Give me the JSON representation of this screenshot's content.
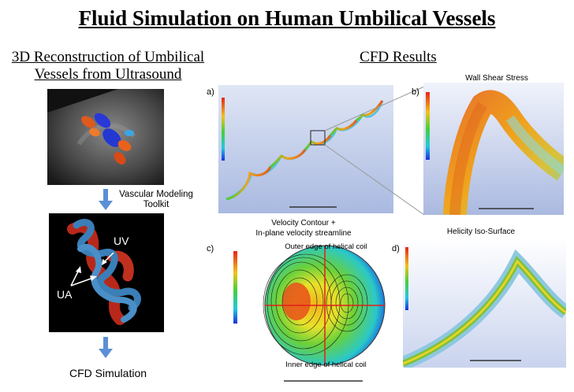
{
  "title": "Fluid Simulation on Human Umbilical Vessels",
  "left": {
    "heading_line1": "3D Reconstruction of Umbilical",
    "heading_line2": "Vessels from Ultrasound",
    "step1_line1": "Vascular Modeling",
    "step1_line2": "Toolkit",
    "label_uv": "UV",
    "label_ua": "UA",
    "step2": "CFD Simulation"
  },
  "right": {
    "heading": "CFD Results",
    "panel_a": "a)",
    "panel_b": "b)",
    "panel_c": "c)",
    "panel_d": "d)",
    "b_title": "Wall Shear Stress",
    "c_title_line1": "Velocity Contour +",
    "c_title_line2": "In-plane velocity streamline",
    "c_outer": "Outer edge of helical coil",
    "c_inner": "Inner edge of helical coil",
    "d_title": "Helicity Iso-Surface"
  },
  "colors": {
    "arrow": "#5b8fd6",
    "sim_bg": "#c9d6f0",
    "red_axis": "#e0201a"
  }
}
